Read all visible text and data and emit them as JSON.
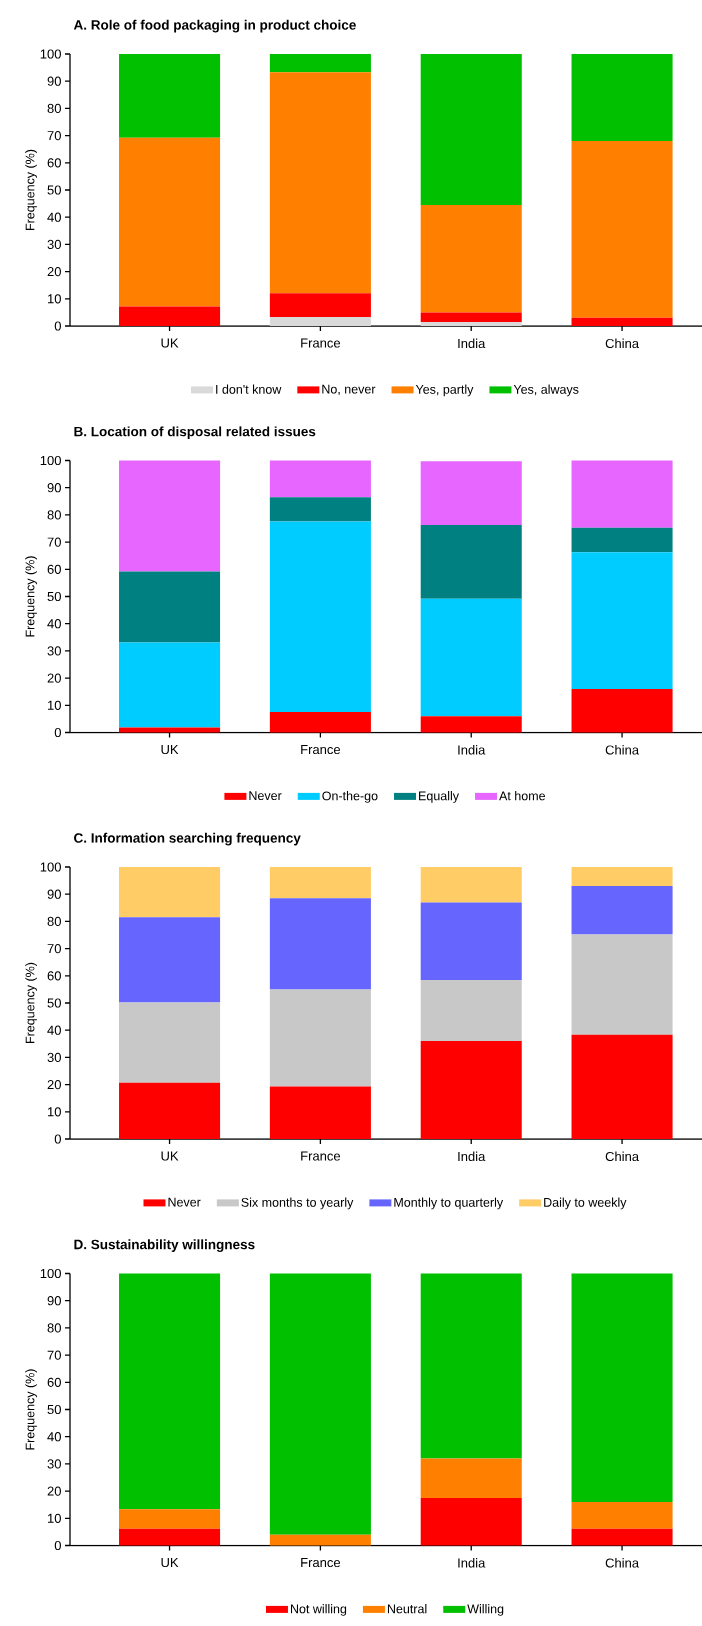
{
  "chart_data": [
    {
      "type": "bar",
      "stacked": true,
      "title": "A. Role of food packaging in product choice",
      "ylabel": "Frequency (%)",
      "categories": [
        "UK",
        "France",
        "India",
        "China"
      ],
      "ylim": [
        0,
        100
      ],
      "yticks": [
        0,
        10,
        20,
        30,
        40,
        50,
        60,
        70,
        80,
        90,
        100
      ],
      "legend": "bottom",
      "series": [
        {
          "name": "I don't know",
          "color": "#d9d9d9",
          "values": [
            0,
            3.3,
            1.5,
            0
          ]
        },
        {
          "name": "No, never",
          "color": "#ff0000",
          "values": [
            7.2,
            8.7,
            3.5,
            3
          ]
        },
        {
          "name": "Yes, partly",
          "color": "#ff8000",
          "values": [
            62,
            81.3,
            39.5,
            65
          ]
        },
        {
          "name": "Yes, always",
          "color": "#00c000",
          "values": [
            30.8,
            6.7,
            55.5,
            32
          ]
        }
      ]
    },
    {
      "type": "bar",
      "stacked": true,
      "title": "B. Location of disposal related issues",
      "ylabel": "Frequency (%)",
      "categories": [
        "UK",
        "France",
        "India",
        "China"
      ],
      "ylim": [
        0,
        100
      ],
      "yticks": [
        0,
        10,
        20,
        30,
        40,
        50,
        60,
        70,
        80,
        90,
        100
      ],
      "legend": "bottom",
      "series": [
        {
          "name": "Never",
          "color": "#ff0000",
          "values": [
            1.8,
            7.5,
            6,
            16
          ]
        },
        {
          "name": "On-the-go",
          "color": "#00ccff",
          "values": [
            31.3,
            70.1,
            43.2,
            50.3
          ]
        },
        {
          "name": "Equally",
          "color": "#008080",
          "values": [
            26.1,
            8.9,
            27.1,
            9
          ]
        },
        {
          "name": "At home",
          "color": "#e666ff",
          "values": [
            40.8,
            13.5,
            23.4,
            24.7
          ]
        }
      ]
    },
    {
      "type": "bar",
      "stacked": true,
      "title": "C. Information searching frequency",
      "ylabel": "Frequency (%)",
      "categories": [
        "UK",
        "France",
        "India",
        "China"
      ],
      "ylim": [
        0,
        100
      ],
      "yticks": [
        0,
        10,
        20,
        30,
        40,
        50,
        60,
        70,
        80,
        90,
        100
      ],
      "legend": "bottom",
      "series": [
        {
          "name": "Never",
          "color": "#ff0000",
          "values": [
            20.7,
            19.3,
            36,
            38.3
          ]
        },
        {
          "name": "Six months to yearly",
          "color": "#c8c8c8",
          "values": [
            29.5,
            35.7,
            22.5,
            36.9
          ]
        },
        {
          "name": "Monthly to quarterly",
          "color": "#6666ff",
          "values": [
            31.3,
            33.5,
            28.5,
            17.8
          ]
        },
        {
          "name": "Daily to weekly",
          "color": "#ffcc66",
          "values": [
            18.5,
            11.5,
            13,
            7
          ]
        }
      ]
    },
    {
      "type": "bar",
      "stacked": true,
      "title": "D. Sustainability willingness",
      "ylabel": "Frequency (%)",
      "categories": [
        "UK",
        "France",
        "India",
        "China"
      ],
      "ylim": [
        0,
        100
      ],
      "yticks": [
        0,
        10,
        20,
        30,
        40,
        50,
        60,
        70,
        80,
        90,
        100
      ],
      "legend": "bottom",
      "series": [
        {
          "name": "Not willing",
          "color": "#ff0000",
          "values": [
            6.2,
            0,
            17.5,
            6.2
          ]
        },
        {
          "name": "Neutral",
          "color": "#ff8000",
          "values": [
            7.1,
            4,
            14.5,
            9.8
          ]
        },
        {
          "name": "Willing",
          "color": "#00c000",
          "values": [
            86.7,
            96,
            68,
            84
          ]
        }
      ]
    }
  ]
}
